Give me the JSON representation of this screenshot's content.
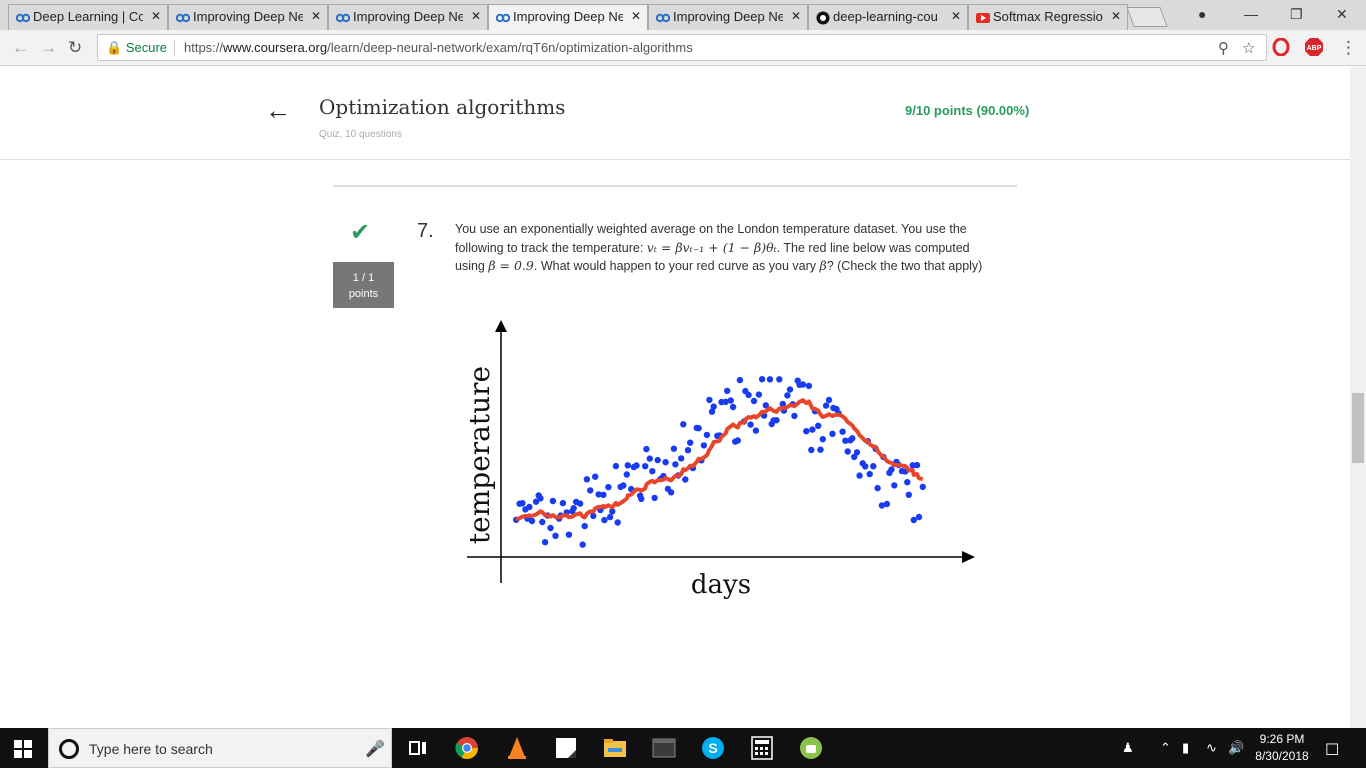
{
  "browser": {
    "tabs": [
      {
        "label": "Deep Learning | Co",
        "favicon": "coursera-icon"
      },
      {
        "label": "Improving Deep Ne",
        "favicon": "coursera-icon"
      },
      {
        "label": "Improving Deep Ne",
        "favicon": "coursera-icon"
      },
      {
        "label": "Improving Deep Ne",
        "favicon": "coursera-icon"
      },
      {
        "label": "Improving Deep Ne",
        "favicon": "coursera-icon"
      },
      {
        "label": "deep-learning-cou",
        "favicon": "github-icon"
      },
      {
        "label": "Softmax Regressio",
        "favicon": "youtube-icon"
      }
    ],
    "close_glyph": "✕",
    "secure_label": "Secure",
    "url_scheme": "https://",
    "url_domain": "www.coursera.org",
    "url_path": "/learn/deep-neural-network/exam/rqT6n/optimization-algorithms"
  },
  "quiz": {
    "title": "Optimization algorithms",
    "subtitle": "Quiz, 10 questions",
    "score": "9/10 points (90.00%)"
  },
  "question": {
    "number": "7.",
    "points_top": "1 / 1",
    "points_bottom": "points",
    "text_1": "You use an exponentially weighted average on the London temperature dataset. You use the following to track the temperature: ",
    "formula_1": "vₜ = βvₜ₋₁ + (1 − β)θₜ",
    "text_2": ". The red line below was computed using ",
    "formula_2": "β = 0.9",
    "text_3": ". What would happen to your red curve as you vary ",
    "formula_3": "β",
    "text_4": "? (Check the two that apply)"
  },
  "chart_data": {
    "type": "scatter",
    "xlabel": "days",
    "ylabel": "temperature",
    "series": [
      {
        "color": "#1a3cf0",
        "kind": "scatter"
      },
      {
        "color": "#e8452a",
        "kind": "line"
      }
    ],
    "points_x": [],
    "points_y": []
  },
  "taskbar": {
    "search_placeholder": "Type here to search",
    "time": "9:26 PM",
    "date": "8/30/2018"
  },
  "colors": {
    "success": "#2a9d5c",
    "points_box": "#777777"
  }
}
